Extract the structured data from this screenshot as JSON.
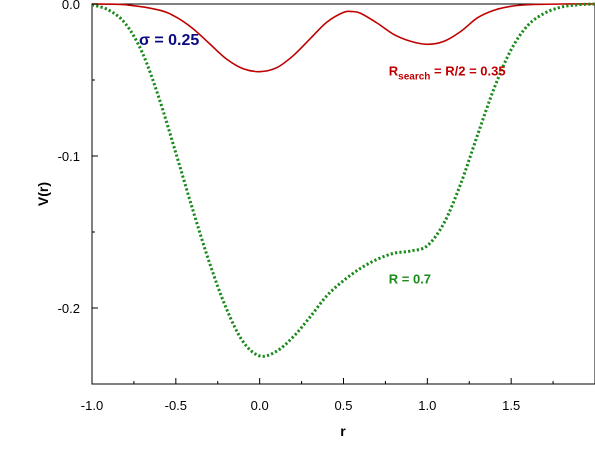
{
  "chart_data": {
    "type": "line",
    "xlabel": "r",
    "ylabel": "V(r)",
    "xlim": [
      -1.0,
      2.0
    ],
    "ylim": [
      -0.25,
      0.0
    ],
    "x_ticks": [
      -1.0,
      -0.5,
      0.0,
      0.5,
      1.0,
      1.5
    ],
    "x_tick_labels": [
      "-1.0",
      "-0.5",
      "0.0",
      "0.5",
      "1.0",
      "1.5"
    ],
    "y_ticks": [
      0.0,
      -0.1,
      -0.2
    ],
    "y_tick_labels": [
      "0.0",
      "-0.1",
      "-0.2"
    ],
    "grid": false,
    "series": [
      {
        "color": "#c00000",
        "style": "solid",
        "x": [
          -1.0,
          -0.8,
          -0.6,
          -0.5,
          -0.4,
          -0.3,
          -0.2,
          -0.1,
          0.0,
          0.1,
          0.2,
          0.3,
          0.4,
          0.5,
          0.55,
          0.6,
          0.7,
          0.8,
          0.9,
          1.0,
          1.1,
          1.2,
          1.3,
          1.4,
          1.5,
          1.6,
          1.8,
          2.0
        ],
        "y": [
          0.0,
          -0.0005,
          -0.004,
          -0.0085,
          -0.016,
          -0.026,
          -0.036,
          -0.0425,
          -0.0445,
          -0.042,
          -0.034,
          -0.023,
          -0.012,
          -0.0055,
          -0.005,
          -0.006,
          -0.0125,
          -0.02,
          -0.0245,
          -0.0265,
          -0.0245,
          -0.018,
          -0.009,
          -0.004,
          -0.0015,
          -0.0005,
          0.0,
          0.0
        ]
      },
      {
        "color": "#1a8a1a",
        "style": "dotted",
        "x": [
          -1.0,
          -0.9,
          -0.8,
          -0.7,
          -0.6,
          -0.5,
          -0.4,
          -0.3,
          -0.2,
          -0.1,
          0.0,
          0.1,
          0.2,
          0.3,
          0.4,
          0.5,
          0.6,
          0.7,
          0.8,
          0.9,
          1.0,
          1.1,
          1.2,
          1.3,
          1.4,
          1.5,
          1.6,
          1.7,
          1.8,
          1.9,
          2.0
        ],
        "y": [
          -0.0005,
          -0.004,
          -0.013,
          -0.032,
          -0.062,
          -0.098,
          -0.135,
          -0.17,
          -0.2,
          -0.222,
          -0.2315,
          -0.2285,
          -0.219,
          -0.206,
          -0.192,
          -0.182,
          -0.174,
          -0.168,
          -0.164,
          -0.1625,
          -0.159,
          -0.144,
          -0.118,
          -0.086,
          -0.055,
          -0.03,
          -0.014,
          -0.006,
          -0.002,
          -0.0005,
          0.0
        ]
      }
    ],
    "annotations": [
      {
        "id": "sigma",
        "text": "σ = 0.25",
        "color": "#0a0a80",
        "x": -0.72,
        "y": -0.027
      },
      {
        "id": "rsearch",
        "main": "R",
        "sub": "search",
        "rest": " = R/2 = 0.35",
        "color": "#c00000",
        "x": 0.77,
        "y": -0.047
      },
      {
        "id": "r",
        "text": "R = 0.7",
        "color": "#1a8a1a",
        "x": 0.77,
        "y": -0.184
      }
    ]
  }
}
